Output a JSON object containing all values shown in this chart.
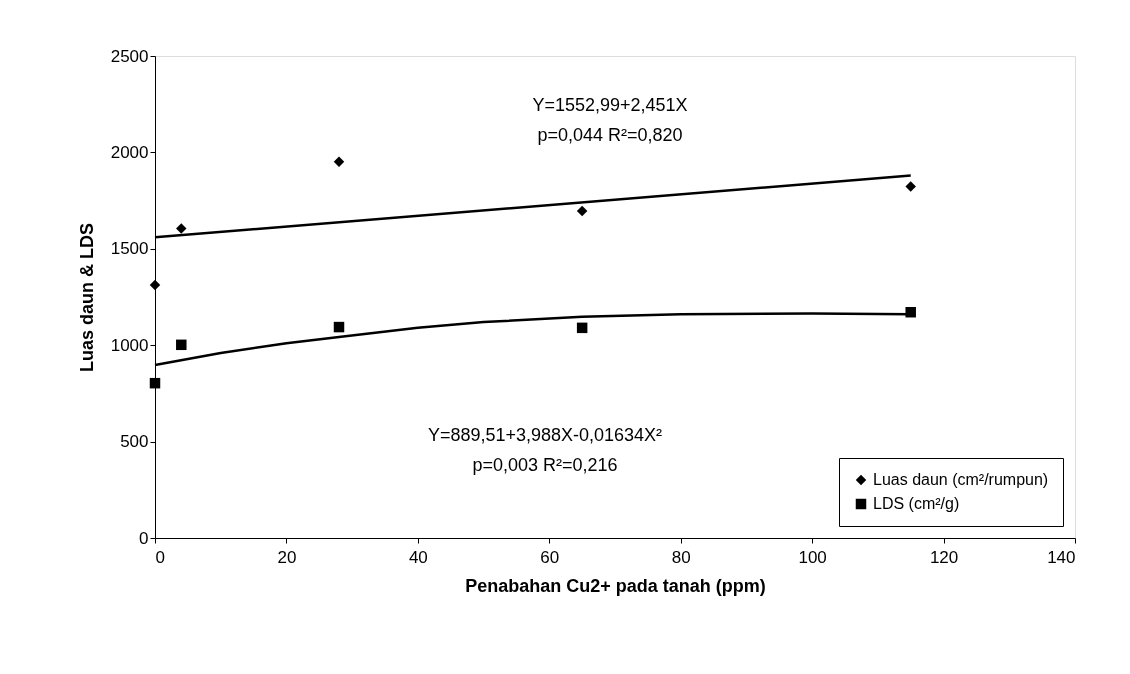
{
  "chart_data": {
    "type": "scatter",
    "xlabel": "Penabahan Cu2+ pada tanah (ppm)",
    "ylabel": "Luas daun & LDS",
    "xlim": [
      0,
      140
    ],
    "xticks": [
      0,
      20,
      40,
      60,
      80,
      100,
      120,
      140
    ],
    "ylim": [
      0,
      2500
    ],
    "yticks": [
      0,
      500,
      1000,
      1500,
      2000,
      2500
    ],
    "grid": false,
    "legend": "bottom right",
    "series": [
      {
        "name": "Luas daun (cm²/rumpun)",
        "color": "#000000",
        "marker": "diamond",
        "x": [
          0,
          4,
          28,
          65,
          115
        ],
        "values": [
          1312,
          1605,
          1951,
          1696,
          1823
        ]
      },
      {
        "name": "LDS (cm²/g)",
        "color": "#000000",
        "marker": "square",
        "x": [
          0,
          4,
          28,
          65,
          115
        ],
        "values": [
          803,
          1002,
          1094,
          1090,
          1171
        ]
      },
      {
        "type": "line",
        "color": "#000000",
        "x": [
          0,
          115
        ],
        "values": [
          1560,
          1880
        ]
      },
      {
        "type": "line",
        "color": "#000000",
        "x": [
          0,
          10,
          20,
          28,
          40,
          50,
          65,
          80,
          100,
          115
        ],
        "values": [
          897,
          960,
          1010,
          1043,
          1090,
          1120,
          1147,
          1160,
          1165,
          1160
        ]
      }
    ],
    "annotations": [
      "Y=1552,99+2,451X",
      "p=0,044 R²=0,820",
      "Y=889,51+3,988X-0,01634X²",
      "p=0,003 R²=0,216"
    ]
  }
}
